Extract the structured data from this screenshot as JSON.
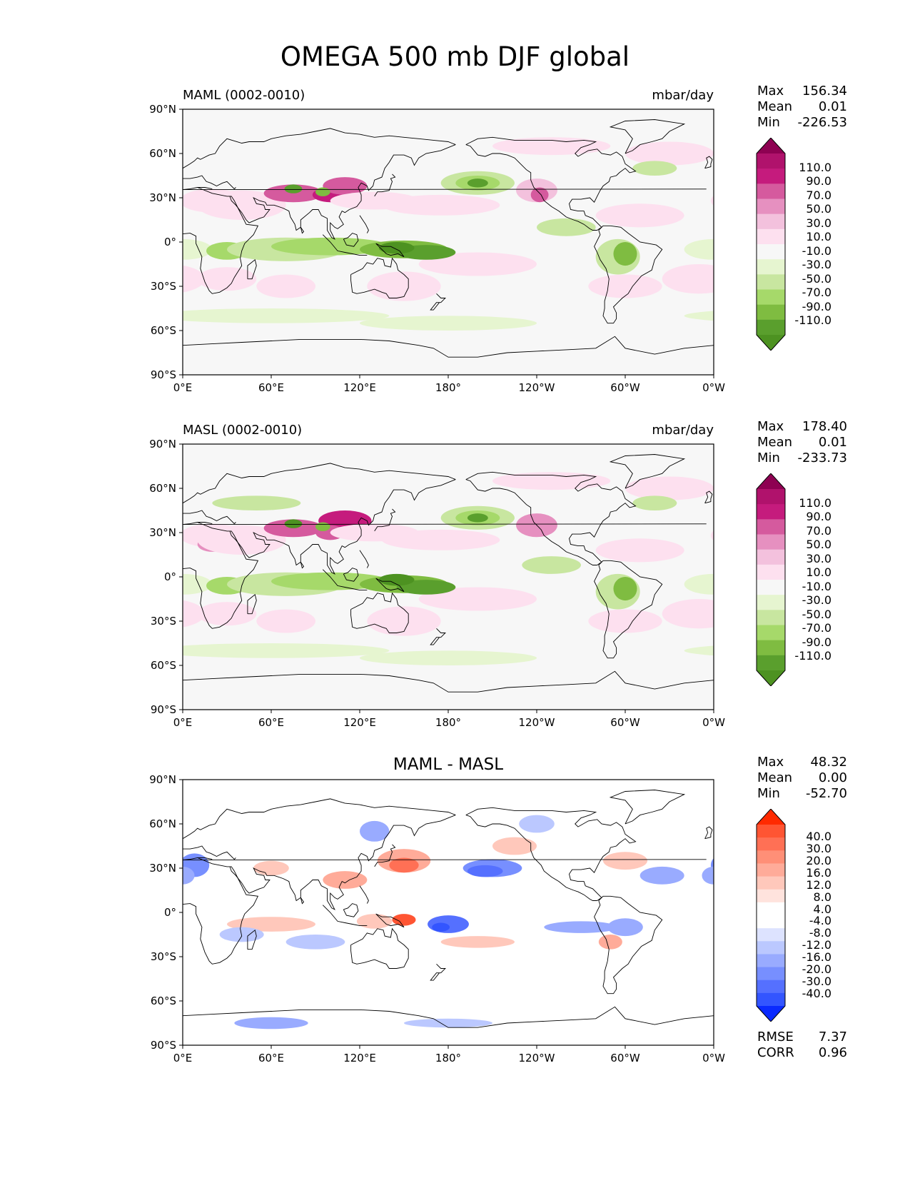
{
  "title": "OMEGA 500 mb DJF global",
  "lon_ticks": [
    "0°E",
    "60°E",
    "120°E",
    "180°",
    "120°W",
    "60°W",
    "0°W"
  ],
  "lat_ticks": [
    "90°N",
    "60°N",
    "30°N",
    "0°",
    "30°S",
    "60°S",
    "90°S"
  ],
  "panels": [
    {
      "label": "MAML (0002-0010)",
      "units": "mbar/day",
      "stats": {
        "max_label": "Max",
        "max": "156.34",
        "mean_label": "Mean",
        "mean": "0.01",
        "min_label": "Min",
        "min": "-226.53"
      },
      "colorbar": [
        "110.0",
        "90.0",
        "70.0",
        "50.0",
        "30.0",
        "10.0",
        "-10.0",
        "-30.0",
        "-50.0",
        "-70.0",
        "-90.0",
        "-110.0"
      ],
      "palette": "PiYG"
    },
    {
      "label": "MASL (0002-0010)",
      "units": "mbar/day",
      "stats": {
        "max_label": "Max",
        "max": "178.40",
        "mean_label": "Mean",
        "mean": "0.01",
        "min_label": "Min",
        "min": "-233.73"
      },
      "colorbar": [
        "110.0",
        "90.0",
        "70.0",
        "50.0",
        "30.0",
        "10.0",
        "-10.0",
        "-30.0",
        "-50.0",
        "-70.0",
        "-90.0",
        "-110.0"
      ],
      "palette": "PiYG"
    },
    {
      "title": "MAML - MASL",
      "stats": {
        "max_label": "Max",
        "max": "48.32",
        "mean_label": "Mean",
        "mean": "0.00",
        "min_label": "Min",
        "min": "-52.70"
      },
      "colorbar": [
        "40.0",
        "30.0",
        "20.0",
        "16.0",
        "12.0",
        "8.0",
        "4.0",
        "-4.0",
        "-8.0",
        "-12.0",
        "-16.0",
        "-20.0",
        "-30.0",
        "-40.0"
      ],
      "palette": "bwr",
      "metrics": {
        "rmse_label": "RMSE",
        "rmse": "7.37",
        "corr_label": "CORR",
        "corr": "0.96"
      }
    }
  ],
  "colors": {
    "piyg": [
      "#8e0152",
      "#b0126c",
      "#c51b7d",
      "#d55a9e",
      "#e690c0",
      "#f3c1dd",
      "#fde0ef",
      "#f7f7f7",
      "#e6f5d0",
      "#c8e6a0",
      "#a6d96a",
      "#7fbc41",
      "#5a9f2d",
      "#4d9221",
      "#276419"
    ],
    "bwr": [
      "#ff2a00",
      "#ff5533",
      "#ff7055",
      "#ff8f77",
      "#ffab99",
      "#ffc8bb",
      "#ffe3dd",
      "#ffffff",
      "#dde3ff",
      "#bbc8ff",
      "#99abff",
      "#778fff",
      "#5570ff",
      "#3355ff",
      "#0a2aff"
    ]
  }
}
